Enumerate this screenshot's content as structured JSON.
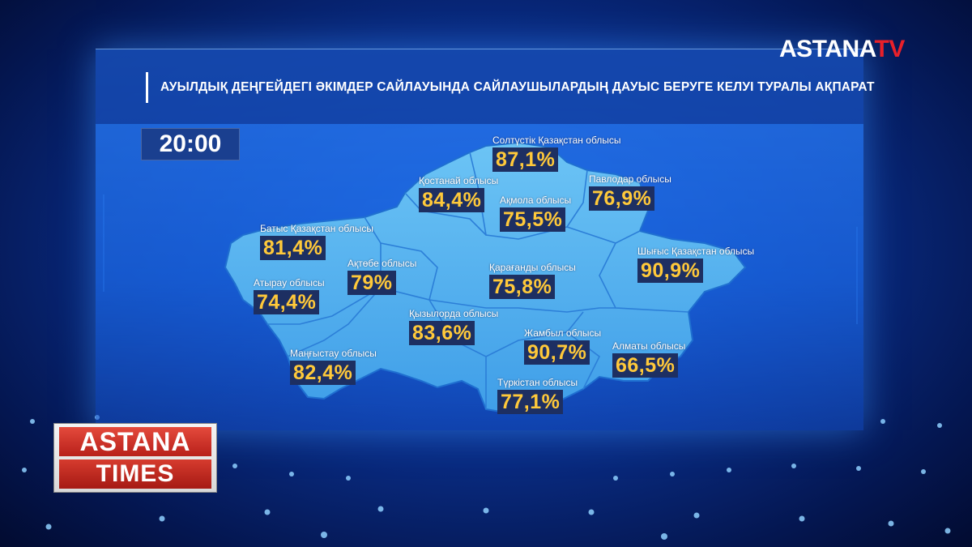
{
  "header": {
    "title": "АУЫЛДЫҚ ДЕҢГЕЙДЕГІ ӘКІМДЕР САЙЛАУЫНДА САЙЛАУШЫЛАРДЫҢ ДАУЫС БЕРУГЕ КЕЛУІ ТУРАЛЫ АҚПАРАТ"
  },
  "time": "20:00",
  "logo": {
    "brand": "ASTANA",
    "suffix": "TV"
  },
  "show_logo": {
    "line1": "ASTANA",
    "line2": "TIMES"
  },
  "regions": [
    {
      "name": "Солтүстік Қазақстан облысы",
      "value": "87,1%"
    },
    {
      "name": "Қостанай облысы",
      "value": "84,4%"
    },
    {
      "name": "Ақмола облысы",
      "value": "75,5%"
    },
    {
      "name": "Павлодар облысы",
      "value": "76,9%"
    },
    {
      "name": "Батыс Қазақстан облысы",
      "value": "81,4%"
    },
    {
      "name": "Ақтөбе облысы",
      "value": "79%"
    },
    {
      "name": "Атырау облысы",
      "value": "74,4%"
    },
    {
      "name": "Қарағанды облысы",
      "value": "75,8%"
    },
    {
      "name": "Шығыс Қазақстан облысы",
      "value": "90,9%"
    },
    {
      "name": "Қызылорда облысы",
      "value": "83,6%"
    },
    {
      "name": "Маңғыстау облысы",
      "value": "82,4%"
    },
    {
      "name": "Жамбыл облысы",
      "value": "90,7%"
    },
    {
      "name": "Алматы облысы",
      "value": "66,5%"
    },
    {
      "name": "Түркістан облысы",
      "value": "77,1%"
    }
  ]
}
